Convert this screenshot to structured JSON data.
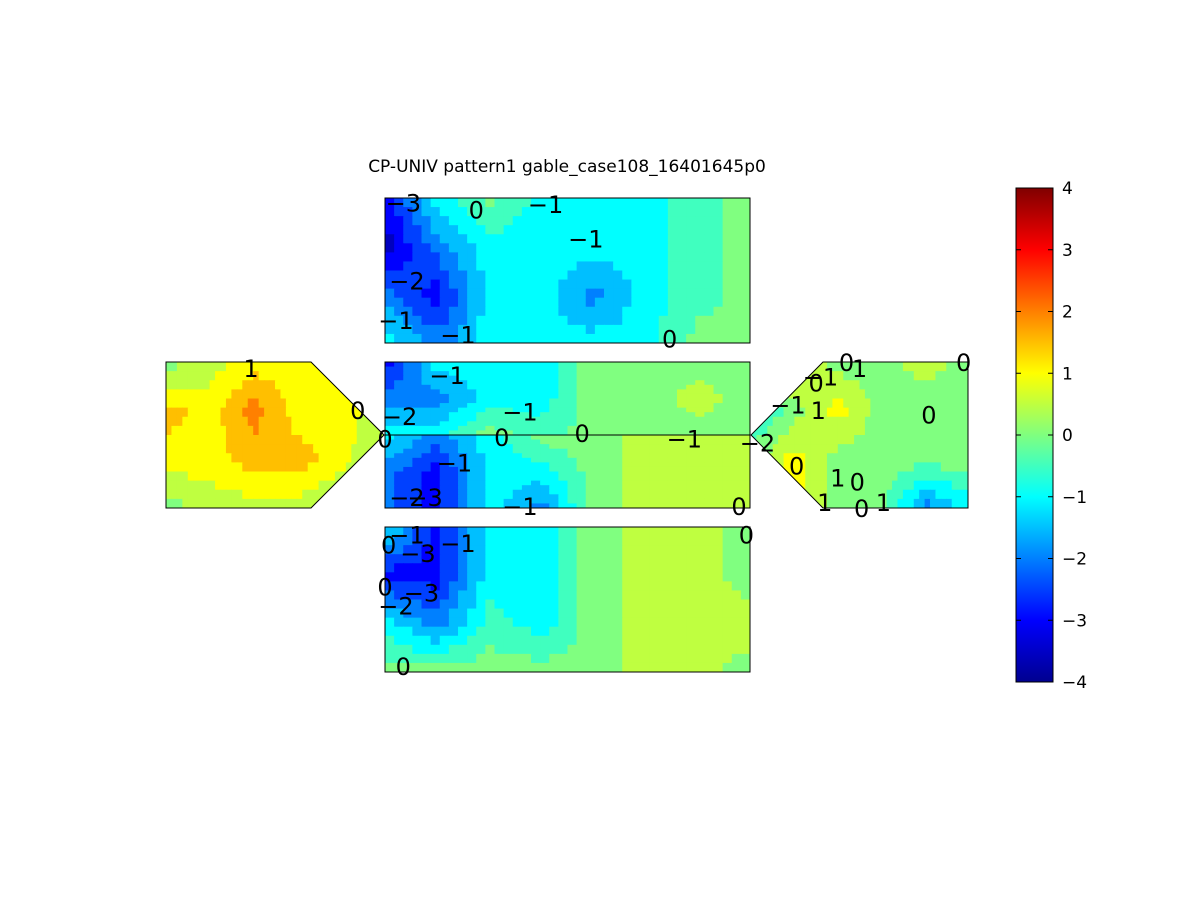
{
  "chart_data": {
    "type": "heatmap",
    "title": "CP-UNIV pattern1 gable_case108_16401645p0",
    "value_range": [
      -4,
      4
    ],
    "colormap": "jet",
    "colorbar": {
      "ticks": [
        4,
        3,
        2,
        1,
        0,
        -1,
        -2,
        -3,
        -4
      ],
      "tick_labels": [
        "4",
        "3",
        "2",
        "1",
        "0",
        "−1",
        "−2",
        "−3",
        "−4"
      ],
      "placement": "right"
    },
    "grid": false,
    "faces": [
      {
        "name": "top",
        "approx_values": [
          [
            -3.0,
            -1.0,
            0.0,
            -1.0,
            -1.0,
            -1.0,
            -0.5,
            0.0
          ],
          [
            -3.5,
            -2.0,
            -1.0,
            -1.0,
            -1.0,
            -1.0,
            -0.5,
            0.0
          ],
          [
            -2.0,
            -3.0,
            -1.0,
            -1.0,
            -2.0,
            -1.0,
            -0.5,
            0.0
          ],
          [
            -1.0,
            -2.0,
            -1.0,
            -1.0,
            -1.0,
            -1.0,
            0.0,
            0.0
          ]
        ]
      },
      {
        "name": "left-gable",
        "approx_values": [
          [
            0.0,
            0.5,
            1.0,
            1.0,
            0.5,
            0.0
          ],
          [
            1.5,
            1.0,
            2.0,
            1.0,
            1.0,
            0.5
          ],
          [
            1.0,
            1.0,
            1.5,
            1.5,
            1.0,
            0.0
          ],
          [
            0.0,
            0.5,
            0.5,
            0.5,
            0.0,
            0.0
          ]
        ]
      },
      {
        "name": "center-upper",
        "approx_values": [
          [
            -3.0,
            -1.0,
            -1.0,
            -1.0,
            0.0,
            0.0,
            0.0,
            0.0
          ],
          [
            -2.0,
            -2.0,
            -1.0,
            -1.0,
            0.0,
            0.0,
            0.5,
            0.0
          ],
          [
            -1.0,
            -1.0,
            0.0,
            -0.5,
            0.0,
            0.0,
            0.0,
            0.0
          ]
        ]
      },
      {
        "name": "center-lower",
        "approx_values": [
          [
            -1.0,
            -2.0,
            -1.0,
            0.0,
            0.0,
            0.5,
            0.5,
            0.5
          ],
          [
            -2.0,
            -3.0,
            -1.0,
            -1.0,
            0.0,
            0.5,
            0.5,
            0.5
          ],
          [
            -2.0,
            -3.0,
            -1.0,
            -2.0,
            0.0,
            0.5,
            0.5,
            0.5
          ]
        ]
      },
      {
        "name": "right-gable",
        "approx_values": [
          [
            0.0,
            1.0,
            0.0,
            0.0,
            0.5,
            0.0
          ],
          [
            -1.0,
            0.0,
            1.0,
            0.0,
            0.0,
            0.0
          ],
          [
            0.0,
            1.0,
            0.0,
            0.0,
            0.0,
            0.0
          ],
          [
            0.0,
            1.0,
            0.0,
            0.0,
            -2.0,
            -1.0
          ]
        ]
      },
      {
        "name": "bottom",
        "approx_values": [
          [
            -1.0,
            -3.0,
            -1.0,
            -1.0,
            0.0,
            0.5,
            0.5,
            0.0
          ],
          [
            -3.0,
            -3.0,
            -1.0,
            -1.0,
            0.0,
            0.5,
            0.5,
            0.0
          ],
          [
            -1.0,
            -2.0,
            -0.5,
            -1.0,
            0.0,
            0.5,
            0.5,
            0.5
          ],
          [
            0.0,
            0.0,
            0.0,
            0.0,
            0.0,
            0.5,
            0.5,
            0.0
          ]
        ]
      }
    ],
    "contour_labels": [
      {
        "face": "top",
        "text": "−3",
        "u": 0.05,
        "v": 0.03
      },
      {
        "face": "top",
        "text": "0",
        "u": 0.25,
        "v": 0.08
      },
      {
        "face": "top",
        "text": "−1",
        "u": 0.44,
        "v": 0.04
      },
      {
        "face": "top",
        "text": "−1",
        "u": 0.55,
        "v": 0.28
      },
      {
        "face": "top",
        "text": "−2",
        "u": 0.06,
        "v": 0.57
      },
      {
        "face": "top",
        "text": "−1",
        "u": 0.03,
        "v": 0.84
      },
      {
        "face": "top",
        "text": "−1",
        "u": 0.2,
        "v": 0.94
      },
      {
        "face": "top",
        "text": "0",
        "u": 0.78,
        "v": 0.97
      },
      {
        "face": "left-gable",
        "text": "1",
        "u": 0.39,
        "v": 0.04
      },
      {
        "face": "left-gable",
        "text": "0",
        "u": 0.88,
        "v": 0.33
      },
      {
        "face": "center-upper",
        "text": "−1",
        "u": 0.17,
        "v": 0.18
      },
      {
        "face": "center-upper",
        "text": "−2",
        "u": 0.04,
        "v": 0.74
      },
      {
        "face": "center-upper",
        "text": "−1",
        "u": 0.37,
        "v": 0.68
      },
      {
        "face": "center-upper",
        "text": "0",
        "u": 0.0,
        "v": 1.05
      },
      {
        "face": "center-upper",
        "text": "0",
        "u": 0.32,
        "v": 1.03
      },
      {
        "face": "center-upper",
        "text": "0",
        "u": 0.54,
        "v": 0.97
      },
      {
        "face": "center-lower",
        "text": "−1",
        "u": 0.82,
        "v": 0.05
      },
      {
        "face": "center-lower",
        "text": "−1",
        "u": 0.19,
        "v": 0.38
      },
      {
        "face": "center-lower",
        "text": "−2",
        "u": 0.06,
        "v": 0.85
      },
      {
        "face": "center-lower",
        "text": "−3",
        "u": 0.11,
        "v": 0.85
      },
      {
        "face": "center-lower",
        "text": "−1",
        "u": 0.37,
        "v": 0.97
      },
      {
        "face": "center-lower",
        "text": "0",
        "u": 0.97,
        "v": 0.97
      },
      {
        "face": "right-gable",
        "text": "−1",
        "u": 0.17,
        "v": 0.29
      },
      {
        "face": "right-gable",
        "text": "−2",
        "u": 0.03,
        "v": 0.55
      },
      {
        "face": "right-gable",
        "text": "−1",
        "u": 0.32,
        "v": 0.1
      },
      {
        "face": "right-gable",
        "text": "0",
        "u": 0.44,
        "v": 0.0
      },
      {
        "face": "right-gable",
        "text": "1",
        "u": 0.5,
        "v": 0.04
      },
      {
        "face": "right-gable",
        "text": "0",
        "u": 0.3,
        "v": 0.14
      },
      {
        "face": "right-gable",
        "text": "1",
        "u": 0.31,
        "v": 0.33
      },
      {
        "face": "right-gable",
        "text": "0",
        "u": 0.98,
        "v": 0.0
      },
      {
        "face": "right-gable",
        "text": "0",
        "u": 0.82,
        "v": 0.36
      },
      {
        "face": "right-gable",
        "text": "0",
        "u": 0.21,
        "v": 0.71
      },
      {
        "face": "right-gable",
        "text": "1",
        "u": 0.4,
        "v": 0.79
      },
      {
        "face": "right-gable",
        "text": "0",
        "u": 0.49,
        "v": 0.82
      },
      {
        "face": "right-gable",
        "text": "1",
        "u": 0.34,
        "v": 0.96
      },
      {
        "face": "right-gable",
        "text": "0",
        "u": 0.51,
        "v": 1.0
      },
      {
        "face": "right-gable",
        "text": "1",
        "u": 0.61,
        "v": 0.96
      },
      {
        "face": "bottom",
        "text": "−1",
        "u": 0.06,
        "v": 0.05
      },
      {
        "face": "bottom",
        "text": "−1",
        "u": 0.2,
        "v": 0.11
      },
      {
        "face": "bottom",
        "text": "0",
        "u": 0.01,
        "v": 0.12
      },
      {
        "face": "bottom",
        "text": "−3",
        "u": 0.09,
        "v": 0.18
      },
      {
        "face": "bottom",
        "text": "0",
        "u": 0.0,
        "v": 0.41
      },
      {
        "face": "bottom",
        "text": "−2",
        "u": 0.03,
        "v": 0.54
      },
      {
        "face": "bottom",
        "text": "−3",
        "u": 0.1,
        "v": 0.45
      },
      {
        "face": "bottom",
        "text": "0",
        "u": 0.05,
        "v": 0.96
      },
      {
        "face": "bottom",
        "text": "0",
        "u": 0.99,
        "v": 0.05
      }
    ]
  }
}
